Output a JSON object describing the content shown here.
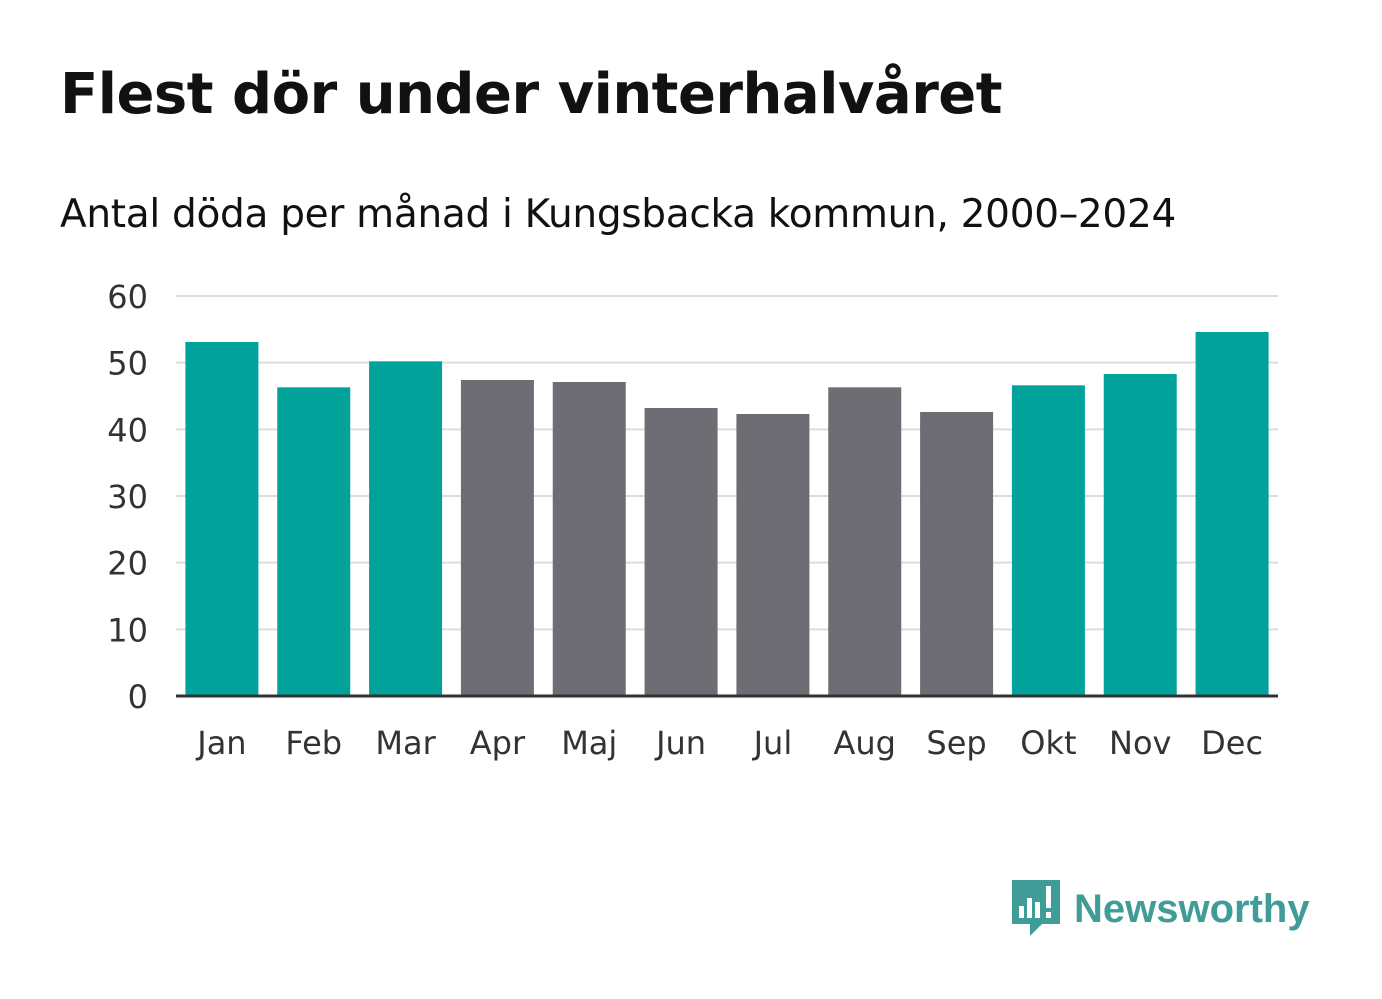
{
  "header": {
    "title": "Flest dör under vinterhalvåret",
    "subtitle": "Antal döda per månad i Kungsbacka kommun, 2000–2024"
  },
  "brand": {
    "name": "Newsworthy",
    "color": "#3f9c96",
    "icon": "bar-chart-speech-bubble-icon"
  },
  "colors": {
    "winter": "#00a29a",
    "summer": "#6e6d73",
    "grid": "#dddddd",
    "axis": "#333333"
  },
  "chart_data": {
    "type": "bar",
    "title": "Antal döda per månad i Kungsbacka kommun, 2000–2024",
    "xlabel": "",
    "ylabel": "",
    "ylim": [
      0,
      60
    ],
    "yticks": [
      0,
      10,
      20,
      30,
      40,
      50,
      60
    ],
    "grid": true,
    "categories": [
      "Jan",
      "Feb",
      "Mar",
      "Apr",
      "Maj",
      "Jun",
      "Jul",
      "Aug",
      "Sep",
      "Okt",
      "Nov",
      "Dec"
    ],
    "values": [
      53.1,
      46.3,
      50.2,
      47.4,
      47.1,
      43.2,
      42.3,
      46.3,
      42.6,
      46.6,
      48.3,
      54.6
    ],
    "highlight": [
      "winter",
      "winter",
      "winter",
      "summer",
      "summer",
      "summer",
      "summer",
      "summer",
      "summer",
      "winter",
      "winter",
      "winter"
    ]
  }
}
